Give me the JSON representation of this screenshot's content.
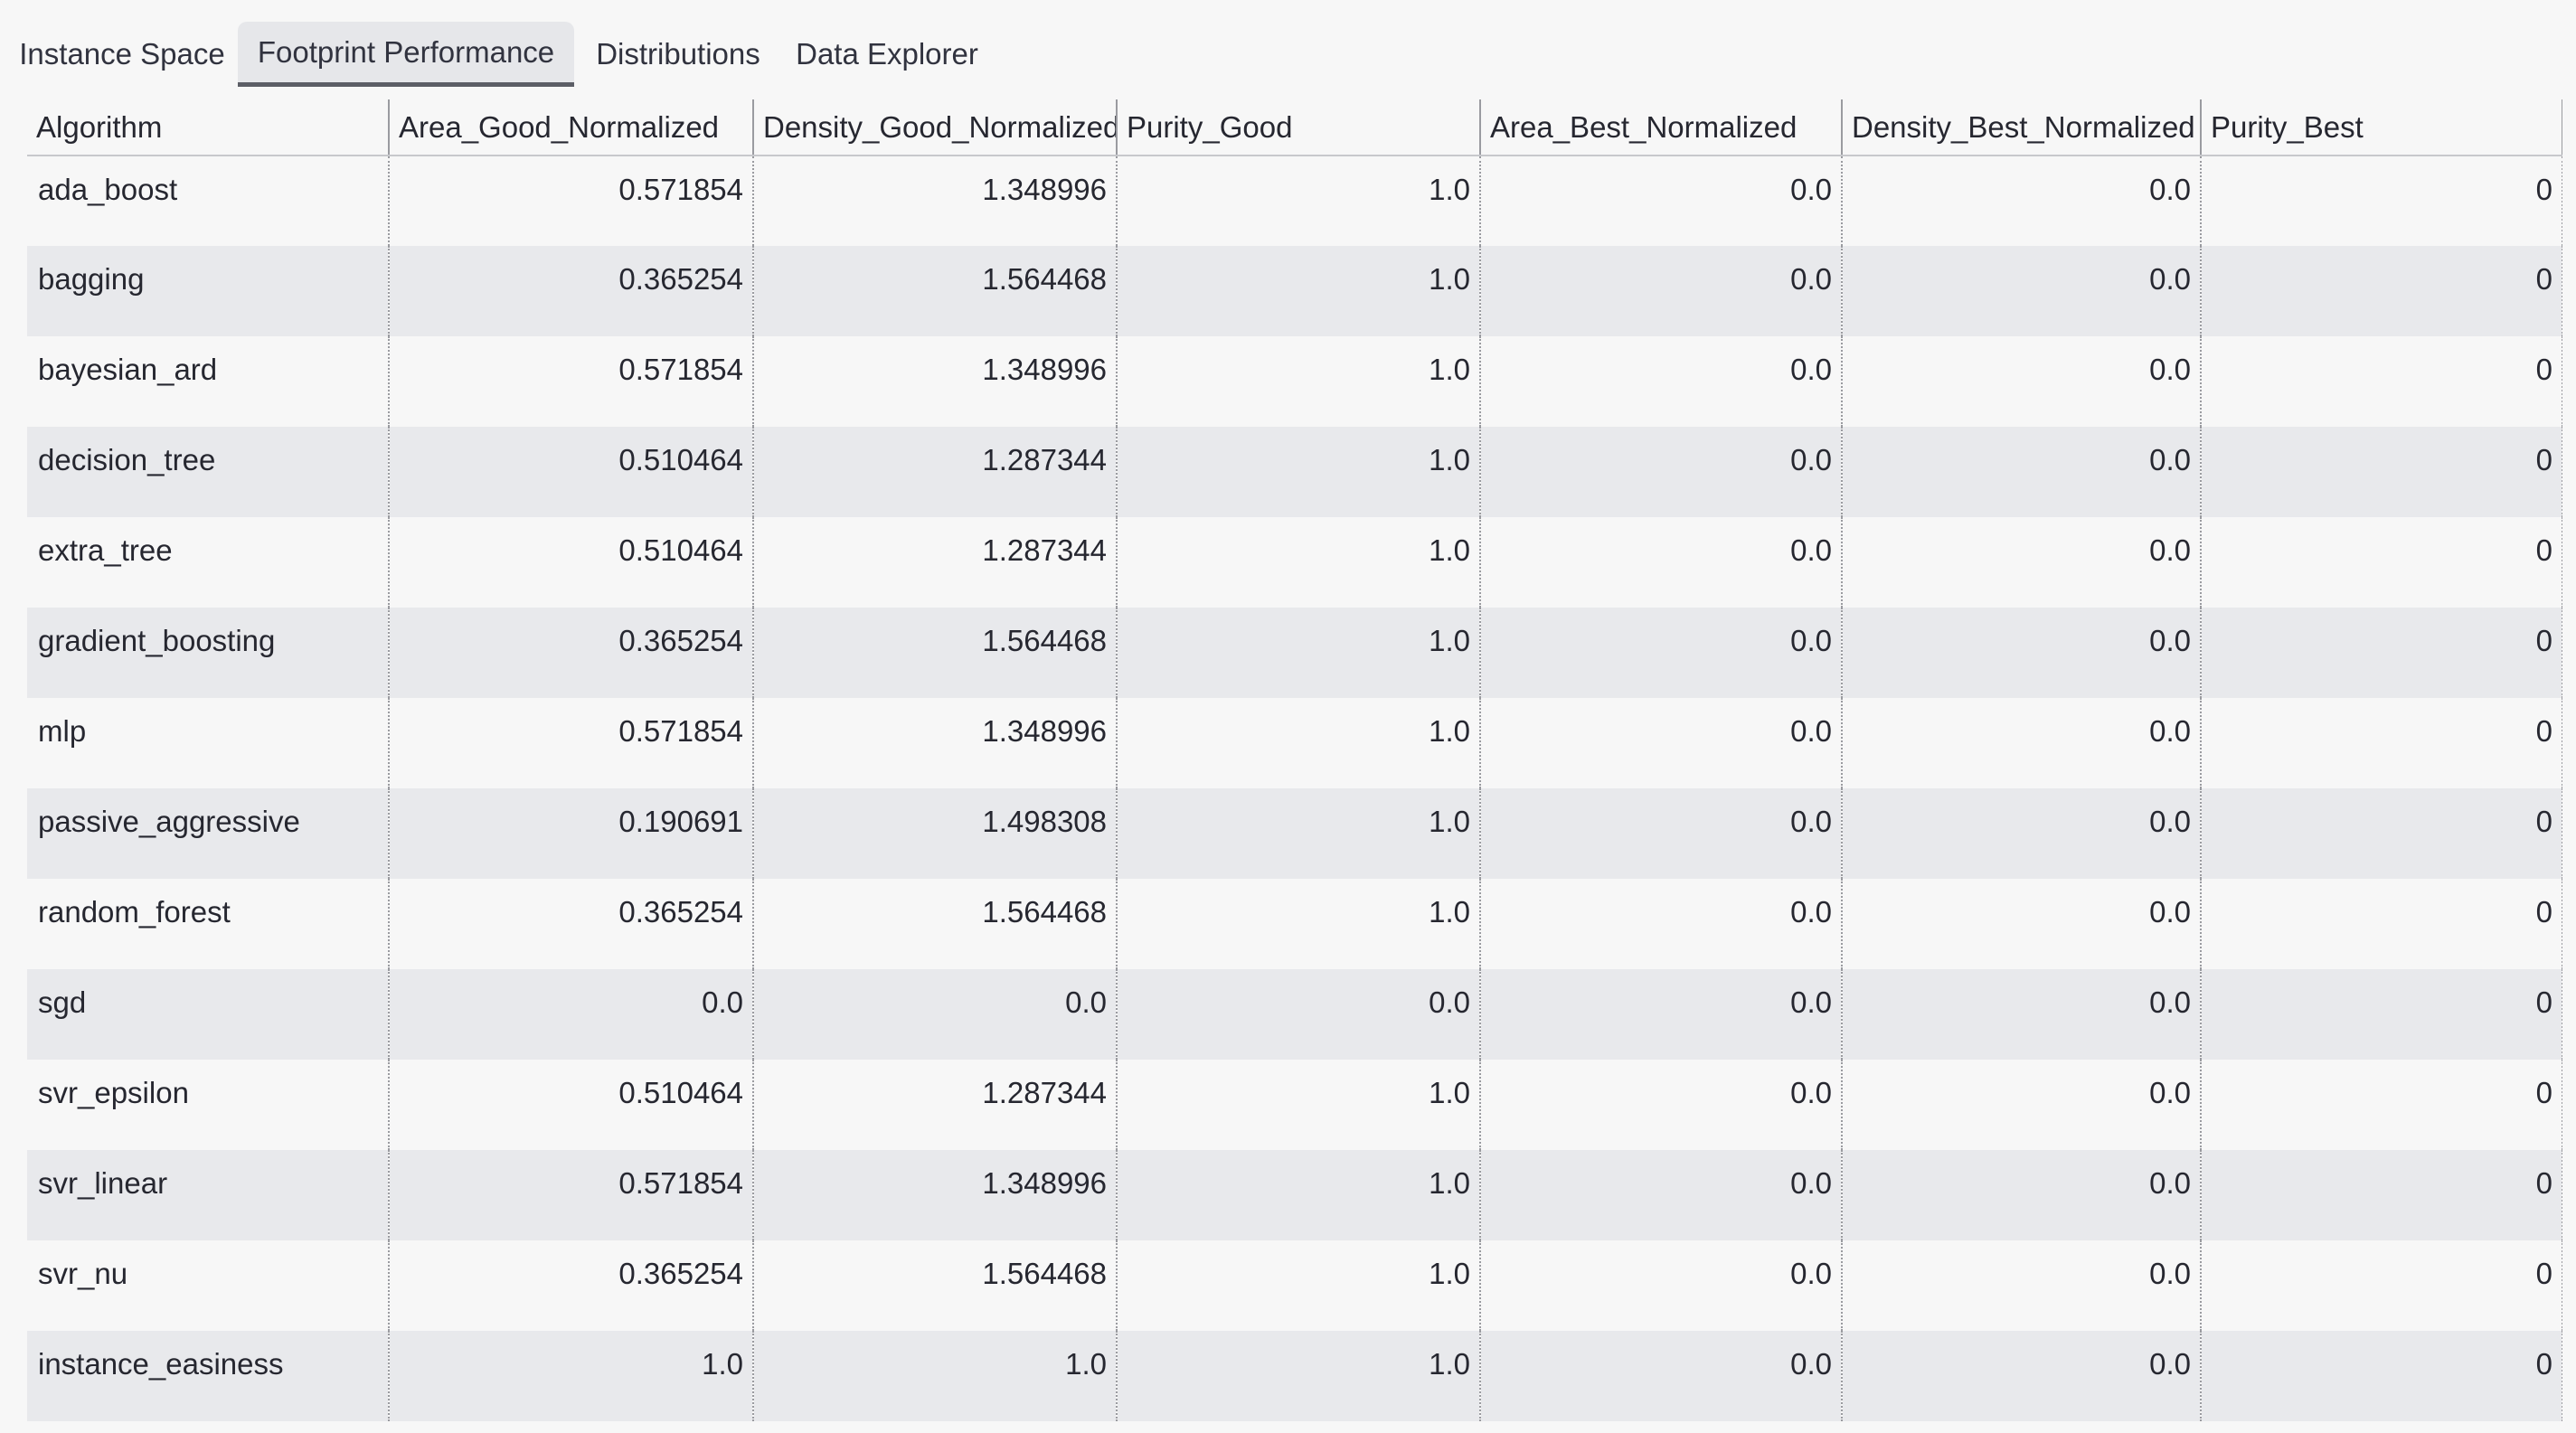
{
  "tabs": [
    {
      "label": "Instance Space"
    },
    {
      "label": "Footprint Performance",
      "active": true
    },
    {
      "label": "Distributions"
    },
    {
      "label": "Data Explorer"
    }
  ],
  "table": {
    "columns": [
      "Algorithm",
      "Area_Good_Normalized",
      "Density_Good_Normalized",
      "Purity_Good",
      "Area_Best_Normalized",
      "Density_Best_Normalized",
      "Purity_Best"
    ],
    "rows": [
      [
        "ada_boost",
        "0.571854",
        "1.348996",
        "1.0",
        "0.0",
        "0.0",
        "0"
      ],
      [
        "bagging",
        "0.365254",
        "1.564468",
        "1.0",
        "0.0",
        "0.0",
        "0"
      ],
      [
        "bayesian_ard",
        "0.571854",
        "1.348996",
        "1.0",
        "0.0",
        "0.0",
        "0"
      ],
      [
        "decision_tree",
        "0.510464",
        "1.287344",
        "1.0",
        "0.0",
        "0.0",
        "0"
      ],
      [
        "extra_tree",
        "0.510464",
        "1.287344",
        "1.0",
        "0.0",
        "0.0",
        "0"
      ],
      [
        "gradient_boosting",
        "0.365254",
        "1.564468",
        "1.0",
        "0.0",
        "0.0",
        "0"
      ],
      [
        "mlp",
        "0.571854",
        "1.348996",
        "1.0",
        "0.0",
        "0.0",
        "0"
      ],
      [
        "passive_aggressive",
        "0.190691",
        "1.498308",
        "1.0",
        "0.0",
        "0.0",
        "0"
      ],
      [
        "random_forest",
        "0.365254",
        "1.564468",
        "1.0",
        "0.0",
        "0.0",
        "0"
      ],
      [
        "sgd",
        "0.0",
        "0.0",
        "0.0",
        "0.0",
        "0.0",
        "0"
      ],
      [
        "svr_epsilon",
        "0.510464",
        "1.287344",
        "1.0",
        "0.0",
        "0.0",
        "0"
      ],
      [
        "svr_linear",
        "0.571854",
        "1.348996",
        "1.0",
        "0.0",
        "0.0",
        "0"
      ],
      [
        "svr_nu",
        "0.365254",
        "1.564468",
        "1.0",
        "0.0",
        "0.0",
        "0"
      ],
      [
        "instance_easiness",
        "1.0",
        "1.0",
        "1.0",
        "0.0",
        "0.0",
        "0"
      ]
    ]
  }
}
